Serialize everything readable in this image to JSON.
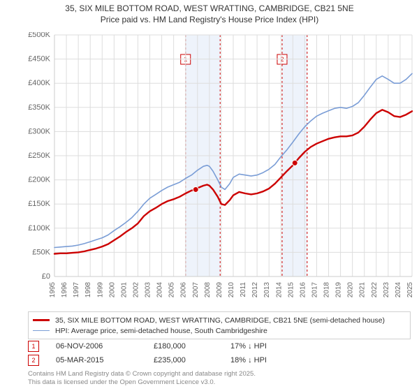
{
  "title": {
    "line1": "35, SIX MILE BOTTOM ROAD, WEST WRATTING, CAMBRIDGE, CB21 5NE",
    "line2": "Price paid vs. HM Land Registry's House Price Index (HPI)",
    "fontsize": 12,
    "color": "#333333"
  },
  "chart": {
    "type": "line",
    "background_color": "#ffffff",
    "grid_color": "#dddddd",
    "plot_border_color": "#cccccc",
    "ylabel": "",
    "ylim": [
      0,
      500000
    ],
    "ytick_step": 50000,
    "ytick_prefix": "£",
    "ytick_labels": [
      "£0",
      "£50K",
      "£100K",
      "£150K",
      "£200K",
      "£250K",
      "£300K",
      "£350K",
      "£400K",
      "£450K",
      "£500K"
    ],
    "xlim": [
      1995,
      2025
    ],
    "xtick_step": 1,
    "xtick_labels": [
      "1995",
      "1996",
      "1997",
      "1998",
      "1999",
      "2000",
      "2001",
      "2002",
      "2003",
      "2004",
      "2005",
      "2006",
      "2007",
      "2008",
      "2009",
      "2010",
      "2011",
      "2012",
      "2013",
      "2014",
      "2015",
      "2016",
      "2017",
      "2018",
      "2019",
      "2020",
      "2021",
      "2022",
      "2023",
      "2024",
      "2025"
    ],
    "highlight_bands": [
      {
        "x_start": 2006.0,
        "x_end": 2008.9,
        "fill": "#eef3fb"
      },
      {
        "x_start": 2014.1,
        "x_end": 2016.2,
        "fill": "#eef3fb"
      }
    ],
    "highlight_band_dash_color": "#cc0000",
    "series": [
      {
        "name": "price_paid",
        "legend_label": "35, SIX MILE BOTTOM ROAD, WEST WRATTING, CAMBRIDGE, CB21 5NE (semi-detached house)",
        "color": "#cc0000",
        "line_width": 2.4,
        "points": [
          [
            1995.0,
            47000
          ],
          [
            1995.5,
            48000
          ],
          [
            1996.0,
            48000
          ],
          [
            1996.5,
            49000
          ],
          [
            1997.0,
            50000
          ],
          [
            1997.5,
            52000
          ],
          [
            1998.0,
            55000
          ],
          [
            1998.5,
            58000
          ],
          [
            1999.0,
            62000
          ],
          [
            1999.5,
            67000
          ],
          [
            2000.0,
            75000
          ],
          [
            2000.5,
            83000
          ],
          [
            2001.0,
            92000
          ],
          [
            2001.5,
            100000
          ],
          [
            2002.0,
            110000
          ],
          [
            2002.5,
            125000
          ],
          [
            2003.0,
            135000
          ],
          [
            2003.5,
            142000
          ],
          [
            2004.0,
            150000
          ],
          [
            2004.5,
            156000
          ],
          [
            2005.0,
            160000
          ],
          [
            2005.5,
            165000
          ],
          [
            2006.0,
            172000
          ],
          [
            2006.5,
            178000
          ],
          [
            2006.85,
            180000
          ],
          [
            2007.0,
            183000
          ],
          [
            2007.5,
            188000
          ],
          [
            2007.8,
            190000
          ],
          [
            2008.0,
            188000
          ],
          [
            2008.3,
            180000
          ],
          [
            2008.7,
            165000
          ],
          [
            2009.0,
            150000
          ],
          [
            2009.3,
            148000
          ],
          [
            2009.7,
            158000
          ],
          [
            2010.0,
            168000
          ],
          [
            2010.5,
            175000
          ],
          [
            2011.0,
            172000
          ],
          [
            2011.5,
            170000
          ],
          [
            2012.0,
            172000
          ],
          [
            2012.5,
            176000
          ],
          [
            2013.0,
            182000
          ],
          [
            2013.5,
            192000
          ],
          [
            2014.0,
            205000
          ],
          [
            2014.5,
            218000
          ],
          [
            2015.0,
            230000
          ],
          [
            2015.17,
            235000
          ],
          [
            2015.5,
            245000
          ],
          [
            2016.0,
            258000
          ],
          [
            2016.5,
            268000
          ],
          [
            2017.0,
            275000
          ],
          [
            2017.5,
            280000
          ],
          [
            2018.0,
            285000
          ],
          [
            2018.5,
            288000
          ],
          [
            2019.0,
            290000
          ],
          [
            2019.5,
            290000
          ],
          [
            2020.0,
            292000
          ],
          [
            2020.5,
            298000
          ],
          [
            2021.0,
            310000
          ],
          [
            2021.5,
            325000
          ],
          [
            2022.0,
            338000
          ],
          [
            2022.5,
            345000
          ],
          [
            2023.0,
            340000
          ],
          [
            2023.5,
            332000
          ],
          [
            2024.0,
            330000
          ],
          [
            2024.5,
            335000
          ],
          [
            2025.0,
            342000
          ]
        ]
      },
      {
        "name": "hpi",
        "legend_label": "HPI: Average price, semi-detached house, South Cambridgeshire",
        "color": "#7a9dd6",
        "line_width": 1.6,
        "points": [
          [
            1995.0,
            60000
          ],
          [
            1995.5,
            61000
          ],
          [
            1996.0,
            62000
          ],
          [
            1996.5,
            63000
          ],
          [
            1997.0,
            65000
          ],
          [
            1997.5,
            68000
          ],
          [
            1998.0,
            72000
          ],
          [
            1998.5,
            76000
          ],
          [
            1999.0,
            80000
          ],
          [
            1999.5,
            86000
          ],
          [
            2000.0,
            95000
          ],
          [
            2000.5,
            103000
          ],
          [
            2001.0,
            112000
          ],
          [
            2001.5,
            122000
          ],
          [
            2002.0,
            135000
          ],
          [
            2002.5,
            150000
          ],
          [
            2003.0,
            162000
          ],
          [
            2003.5,
            170000
          ],
          [
            2004.0,
            178000
          ],
          [
            2004.5,
            185000
          ],
          [
            2005.0,
            190000
          ],
          [
            2005.5,
            195000
          ],
          [
            2006.0,
            203000
          ],
          [
            2006.5,
            210000
          ],
          [
            2007.0,
            220000
          ],
          [
            2007.5,
            228000
          ],
          [
            2007.8,
            230000
          ],
          [
            2008.0,
            228000
          ],
          [
            2008.3,
            218000
          ],
          [
            2008.7,
            200000
          ],
          [
            2009.0,
            185000
          ],
          [
            2009.3,
            180000
          ],
          [
            2009.7,
            192000
          ],
          [
            2010.0,
            205000
          ],
          [
            2010.5,
            212000
          ],
          [
            2011.0,
            210000
          ],
          [
            2011.5,
            208000
          ],
          [
            2012.0,
            210000
          ],
          [
            2012.5,
            215000
          ],
          [
            2013.0,
            222000
          ],
          [
            2013.5,
            232000
          ],
          [
            2014.0,
            248000
          ],
          [
            2014.5,
            262000
          ],
          [
            2015.0,
            278000
          ],
          [
            2015.5,
            295000
          ],
          [
            2016.0,
            310000
          ],
          [
            2016.5,
            322000
          ],
          [
            2017.0,
            332000
          ],
          [
            2017.5,
            338000
          ],
          [
            2018.0,
            343000
          ],
          [
            2018.5,
            348000
          ],
          [
            2019.0,
            350000
          ],
          [
            2019.5,
            348000
          ],
          [
            2020.0,
            352000
          ],
          [
            2020.5,
            360000
          ],
          [
            2021.0,
            375000
          ],
          [
            2021.5,
            392000
          ],
          [
            2022.0,
            408000
          ],
          [
            2022.5,
            415000
          ],
          [
            2023.0,
            408000
          ],
          [
            2023.5,
            400000
          ],
          [
            2024.0,
            400000
          ],
          [
            2024.5,
            408000
          ],
          [
            2025.0,
            420000
          ]
        ]
      }
    ],
    "sale_markers": [
      {
        "label": "1",
        "x": 2006.85,
        "y": 180000,
        "color": "#cc0000"
      },
      {
        "label": "2",
        "x": 2015.17,
        "y": 235000,
        "color": "#cc0000"
      }
    ],
    "sale_marker_box": {
      "w": 14,
      "h": 14,
      "border": "#cc0000",
      "text_color": "#cc0000",
      "font_size": 9
    }
  },
  "legend": {
    "border_color": "#d0d0d0",
    "font_size": 10.5
  },
  "sales_table": {
    "rows": [
      {
        "marker": "1",
        "date": "06-NOV-2006",
        "price": "£180,000",
        "delta": "17% ↓ HPI"
      },
      {
        "marker": "2",
        "date": "05-MAR-2015",
        "price": "£235,000",
        "delta": "18% ↓ HPI"
      }
    ]
  },
  "footer": {
    "line1": "Contains HM Land Registry data © Crown copyright and database right 2025.",
    "line2": "This data is licensed under the Open Government Licence v3.0.",
    "color": "#888888",
    "font_size": 9.5
  }
}
